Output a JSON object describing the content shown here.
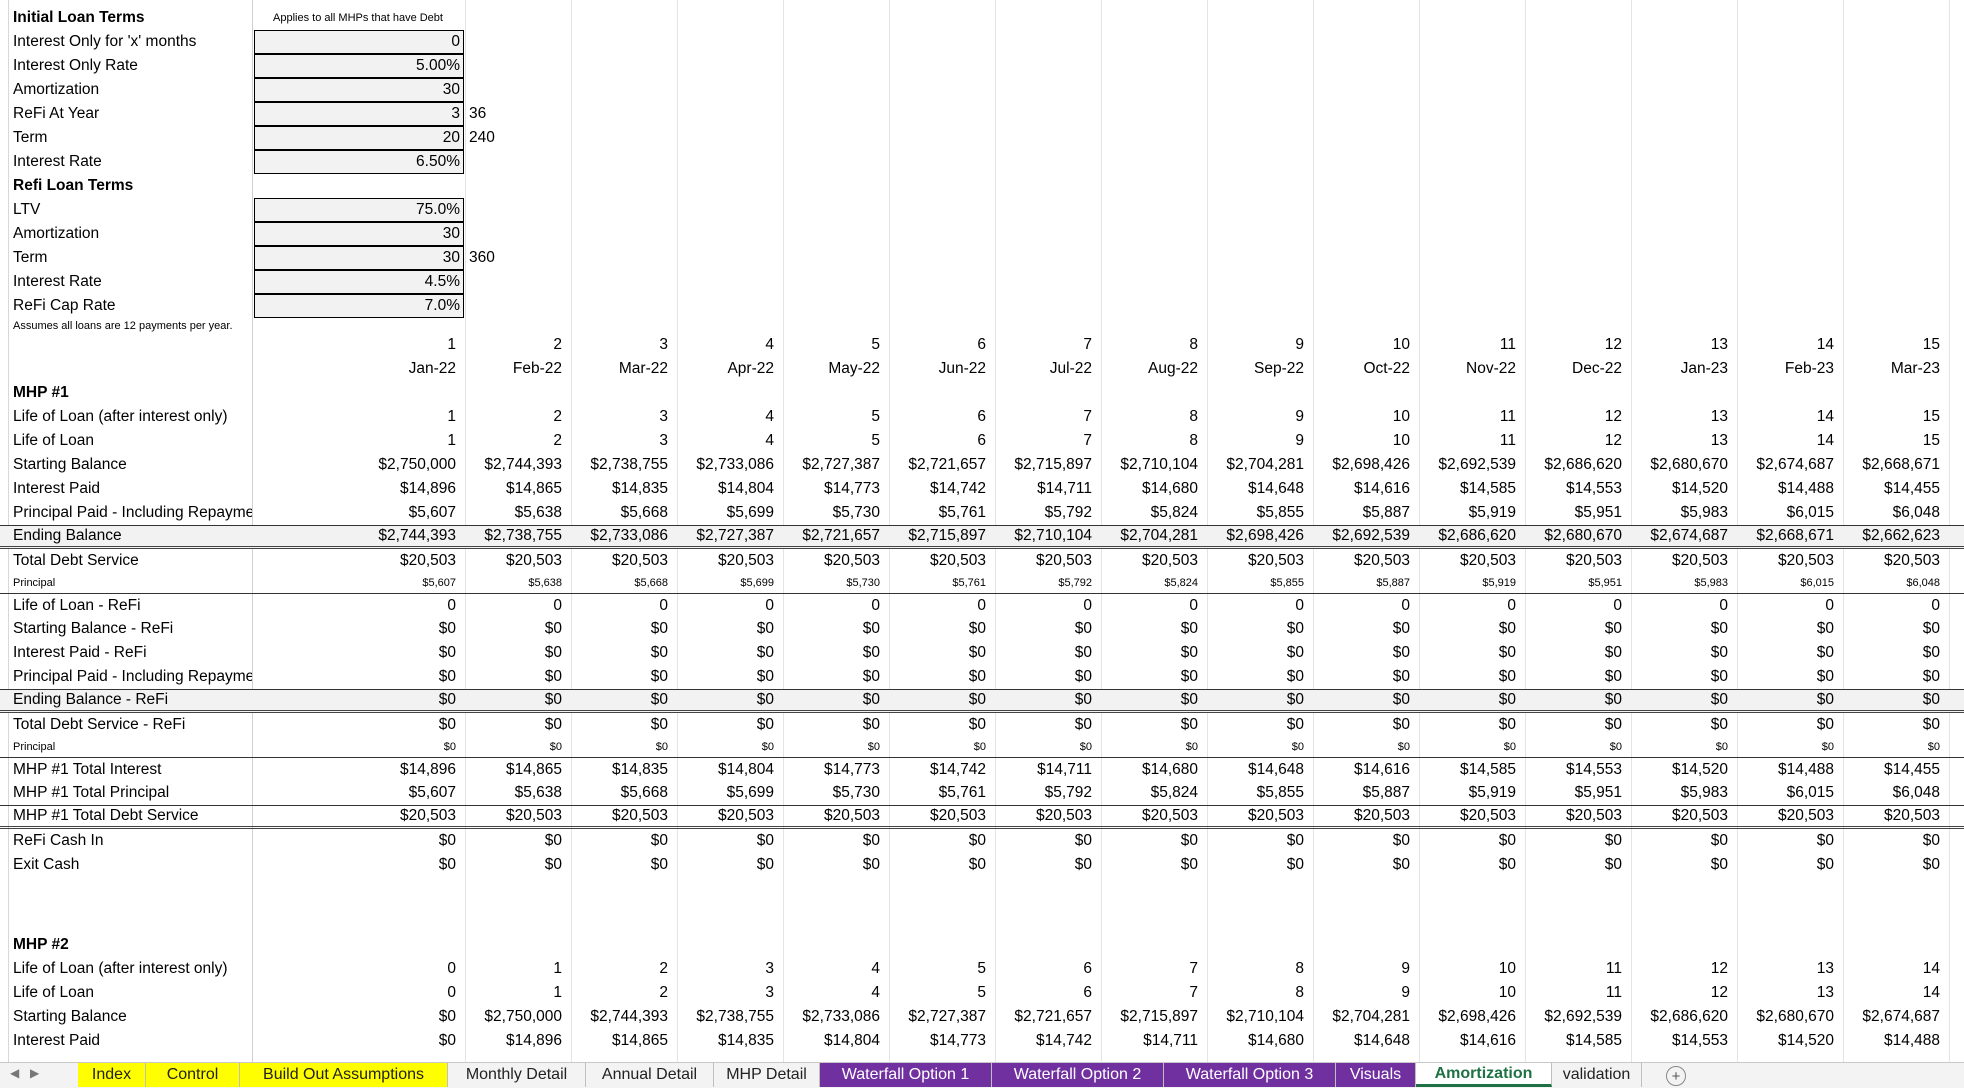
{
  "initial_terms": {
    "title": "Initial Loan Terms",
    "note": "Applies to all MHPs that have Debt",
    "rows": [
      {
        "label": "Interest Only for 'x' months",
        "value": "0",
        "side": ""
      },
      {
        "label": "Interest Only Rate",
        "value": "5.00%",
        "side": ""
      },
      {
        "label": "Amortization",
        "value": "30",
        "side": ""
      },
      {
        "label": "ReFi At Year",
        "value": "3",
        "side": "36"
      },
      {
        "label": "Term",
        "value": "20",
        "side": "240"
      },
      {
        "label": "Interest Rate",
        "value": "6.50%",
        "side": ""
      }
    ]
  },
  "refi_terms": {
    "title": "Refi Loan Terms",
    "rows": [
      {
        "label": "LTV",
        "value": "75.0%",
        "side": ""
      },
      {
        "label": "Amortization",
        "value": "30",
        "side": ""
      },
      {
        "label": "Term",
        "value": "30",
        "side": "360"
      },
      {
        "label": "Interest Rate",
        "value": "4.5%",
        "side": ""
      },
      {
        "label": "ReFi Cap Rate",
        "value": "7.0%",
        "side": ""
      }
    ]
  },
  "assumption_note": "Assumes all loans are 12 payments per year.",
  "periods": [
    "1",
    "2",
    "3",
    "4",
    "5",
    "6",
    "7",
    "8",
    "9",
    "10",
    "11",
    "12",
    "13",
    "14",
    "15"
  ],
  "months": [
    "Jan-22",
    "Feb-22",
    "Mar-22",
    "Apr-22",
    "May-22",
    "Jun-22",
    "Jul-22",
    "Aug-22",
    "Sep-22",
    "Oct-22",
    "Nov-22",
    "Dec-22",
    "Jan-23",
    "Feb-23",
    "Mar-23"
  ],
  "mhp1": {
    "title": "MHP #1",
    "rows": [
      {
        "label": "Life of Loan (after interest only)",
        "values": [
          "1",
          "2",
          "3",
          "4",
          "5",
          "6",
          "7",
          "8",
          "9",
          "10",
          "11",
          "12",
          "13",
          "14",
          "15"
        ]
      },
      {
        "label": "Life of Loan",
        "values": [
          "1",
          "2",
          "3",
          "4",
          "5",
          "6",
          "7",
          "8",
          "9",
          "10",
          "11",
          "12",
          "13",
          "14",
          "15"
        ]
      },
      {
        "label": "Starting Balance",
        "values": [
          "$2,750,000",
          "$2,744,393",
          "$2,738,755",
          "$2,733,086",
          "$2,727,387",
          "$2,721,657",
          "$2,715,897",
          "$2,710,104",
          "$2,704,281",
          "$2,698,426",
          "$2,692,539",
          "$2,686,620",
          "$2,680,670",
          "$2,674,687",
          "$2,668,671"
        ]
      },
      {
        "label": "Interest Paid",
        "values": [
          "$14,896",
          "$14,865",
          "$14,835",
          "$14,804",
          "$14,773",
          "$14,742",
          "$14,711",
          "$14,680",
          "$14,648",
          "$14,616",
          "$14,585",
          "$14,553",
          "$14,520",
          "$14,488",
          "$14,455"
        ]
      },
      {
        "label": "Principal Paid - Including Repayment",
        "values": [
          "$5,607",
          "$5,638",
          "$5,668",
          "$5,699",
          "$5,730",
          "$5,761",
          "$5,792",
          "$5,824",
          "$5,855",
          "$5,887",
          "$5,919",
          "$5,951",
          "$5,983",
          "$6,015",
          "$6,048"
        ]
      },
      {
        "label": "Ending Balance",
        "values": [
          "$2,744,393",
          "$2,738,755",
          "$2,733,086",
          "$2,727,387",
          "$2,721,657",
          "$2,715,897",
          "$2,710,104",
          "$2,704,281",
          "$2,698,426",
          "$2,692,539",
          "$2,686,620",
          "$2,680,670",
          "$2,674,687",
          "$2,668,671",
          "$2,662,623"
        ]
      },
      {
        "label": "Total Debt Service",
        "values": [
          "$20,503",
          "$20,503",
          "$20,503",
          "$20,503",
          "$20,503",
          "$20,503",
          "$20,503",
          "$20,503",
          "$20,503",
          "$20,503",
          "$20,503",
          "$20,503",
          "$20,503",
          "$20,503",
          "$20,503"
        ]
      },
      {
        "label": "Principal",
        "values": [
          "$5,607",
          "$5,638",
          "$5,668",
          "$5,699",
          "$5,730",
          "$5,761",
          "$5,792",
          "$5,824",
          "$5,855",
          "$5,887",
          "$5,919",
          "$5,951",
          "$5,983",
          "$6,015",
          "$6,048"
        ]
      },
      {
        "label": "Life of Loan - ReFi",
        "values": [
          "0",
          "0",
          "0",
          "0",
          "0",
          "0",
          "0",
          "0",
          "0",
          "0",
          "0",
          "0",
          "0",
          "0",
          "0"
        ]
      },
      {
        "label": "Starting Balance - ReFi",
        "values": [
          "$0",
          "$0",
          "$0",
          "$0",
          "$0",
          "$0",
          "$0",
          "$0",
          "$0",
          "$0",
          "$0",
          "$0",
          "$0",
          "$0",
          "$0"
        ]
      },
      {
        "label": "Interest Paid - ReFi",
        "values": [
          "$0",
          "$0",
          "$0",
          "$0",
          "$0",
          "$0",
          "$0",
          "$0",
          "$0",
          "$0",
          "$0",
          "$0",
          "$0",
          "$0",
          "$0"
        ]
      },
      {
        "label": "Principal Paid - Including Repayment",
        "values": [
          "$0",
          "$0",
          "$0",
          "$0",
          "$0",
          "$0",
          "$0",
          "$0",
          "$0",
          "$0",
          "$0",
          "$0",
          "$0",
          "$0",
          "$0"
        ]
      },
      {
        "label": "Ending Balance - ReFi",
        "values": [
          "$0",
          "$0",
          "$0",
          "$0",
          "$0",
          "$0",
          "$0",
          "$0",
          "$0",
          "$0",
          "$0",
          "$0",
          "$0",
          "$0",
          "$0"
        ]
      },
      {
        "label": "Total Debt Service - ReFi",
        "values": [
          "$0",
          "$0",
          "$0",
          "$0",
          "$0",
          "$0",
          "$0",
          "$0",
          "$0",
          "$0",
          "$0",
          "$0",
          "$0",
          "$0",
          "$0"
        ]
      },
      {
        "label": "Principal",
        "values": [
          "$0",
          "$0",
          "$0",
          "$0",
          "$0",
          "$0",
          "$0",
          "$0",
          "$0",
          "$0",
          "$0",
          "$0",
          "$0",
          "$0",
          "$0"
        ]
      },
      {
        "label": "MHP #1 Total Interest",
        "values": [
          "$14,896",
          "$14,865",
          "$14,835",
          "$14,804",
          "$14,773",
          "$14,742",
          "$14,711",
          "$14,680",
          "$14,648",
          "$14,616",
          "$14,585",
          "$14,553",
          "$14,520",
          "$14,488",
          "$14,455"
        ]
      },
      {
        "label": "MHP #1 Total Principal",
        "values": [
          "$5,607",
          "$5,638",
          "$5,668",
          "$5,699",
          "$5,730",
          "$5,761",
          "$5,792",
          "$5,824",
          "$5,855",
          "$5,887",
          "$5,919",
          "$5,951",
          "$5,983",
          "$6,015",
          "$6,048"
        ]
      },
      {
        "label": "MHP #1 Total Debt Service",
        "values": [
          "$20,503",
          "$20,503",
          "$20,503",
          "$20,503",
          "$20,503",
          "$20,503",
          "$20,503",
          "$20,503",
          "$20,503",
          "$20,503",
          "$20,503",
          "$20,503",
          "$20,503",
          "$20,503",
          "$20,503"
        ]
      },
      {
        "label": "ReFi Cash In",
        "values": [
          "$0",
          "$0",
          "$0",
          "$0",
          "$0",
          "$0",
          "$0",
          "$0",
          "$0",
          "$0",
          "$0",
          "$0",
          "$0",
          "$0",
          "$0"
        ]
      },
      {
        "label": "Exit Cash",
        "values": [
          "$0",
          "$0",
          "$0",
          "$0",
          "$0",
          "$0",
          "$0",
          "$0",
          "$0",
          "$0",
          "$0",
          "$0",
          "$0",
          "$0",
          "$0"
        ]
      }
    ]
  },
  "mhp2": {
    "title": "MHP #2",
    "rows": [
      {
        "label": "Life of Loan (after interest only)",
        "values": [
          "0",
          "1",
          "2",
          "3",
          "4",
          "5",
          "6",
          "7",
          "8",
          "9",
          "10",
          "11",
          "12",
          "13",
          "14"
        ]
      },
      {
        "label": "Life of Loan",
        "values": [
          "0",
          "1",
          "2",
          "3",
          "4",
          "5",
          "6",
          "7",
          "8",
          "9",
          "10",
          "11",
          "12",
          "13",
          "14"
        ]
      },
      {
        "label": "Starting Balance",
        "values": [
          "$0",
          "$2,750,000",
          "$2,744,393",
          "$2,738,755",
          "$2,733,086",
          "$2,727,387",
          "$2,721,657",
          "$2,715,897",
          "$2,710,104",
          "$2,704,281",
          "$2,698,426",
          "$2,692,539",
          "$2,686,620",
          "$2,680,670",
          "$2,674,687"
        ]
      },
      {
        "label": "Interest Paid",
        "values": [
          "$0",
          "$14,896",
          "$14,865",
          "$14,835",
          "$14,804",
          "$14,773",
          "$14,742",
          "$14,711",
          "$14,680",
          "$14,648",
          "$14,616",
          "$14,585",
          "$14,553",
          "$14,520",
          "$14,488"
        ]
      }
    ]
  },
  "tabs": [
    {
      "label": "Index",
      "style": "yellow"
    },
    {
      "label": "Control",
      "style": "yellow"
    },
    {
      "label": "Build Out Assumptions",
      "style": "yellow"
    },
    {
      "label": "Monthly Detail",
      "style": "plain"
    },
    {
      "label": "Annual Detail",
      "style": "plain"
    },
    {
      "label": "MHP Detail",
      "style": "plain"
    },
    {
      "label": "Waterfall Option 1",
      "style": "purple"
    },
    {
      "label": "Waterfall Option 2",
      "style": "purple"
    },
    {
      "label": "Waterfall Option 3",
      "style": "purple"
    },
    {
      "label": "Visuals",
      "style": "purple"
    },
    {
      "label": "Amortization",
      "style": "active"
    },
    {
      "label": "validation",
      "style": "plain"
    }
  ],
  "add_sheet_icon": "plus-circle-icon",
  "colors": {
    "tab_yellow": "#ffff00",
    "tab_purple": "#7030a0",
    "active_tab_text": "#1e7145"
  }
}
